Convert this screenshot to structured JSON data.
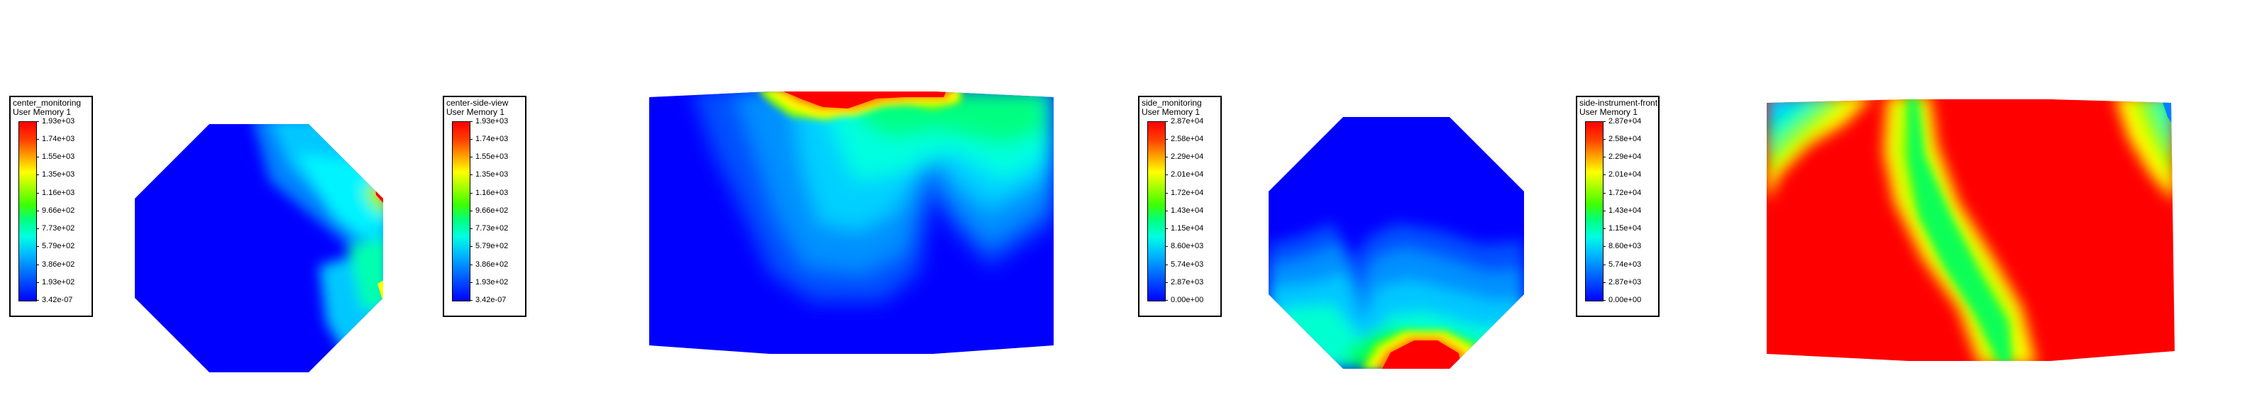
{
  "panels": [
    {
      "legend_title": "center_monitoring",
      "legend_subtitle": "User Memory 1",
      "ticks": [
        "1.93e+03",
        "1.74e+03",
        "1.55e+03",
        "1.35e+03",
        "1.16e+03",
        "9.66e+02",
        "7.73e+02",
        "5.79e+02",
        "3.86e+02",
        "1.93e+02",
        "3.42e-07"
      ]
    },
    {
      "legend_title": "center-side-view",
      "legend_subtitle": "User Memory 1",
      "ticks": [
        "1.93e+03",
        "1.74e+03",
        "1.55e+03",
        "1.35e+03",
        "1.16e+03",
        "9.66e+02",
        "7.73e+02",
        "5.79e+02",
        "3.86e+02",
        "1.93e+02",
        "3.42e-07"
      ]
    },
    {
      "legend_title": "side_monitoring",
      "legend_subtitle": "User Memory 1",
      "ticks": [
        "2.87e+04",
        "2.58e+04",
        "2.29e+04",
        "2.01e+04",
        "1.72e+04",
        "1.43e+04",
        "1.15e+04",
        "8.60e+03",
        "5.74e+03",
        "2.87e+03",
        "0.00e+00"
      ]
    },
    {
      "legend_title": "side-instrument-front",
      "legend_subtitle": "User Memory 1",
      "ticks": [
        "2.87e+04",
        "2.58e+04",
        "2.29e+04",
        "2.01e+04",
        "1.72e+04",
        "1.43e+04",
        "1.15e+04",
        "8.60e+03",
        "5.74e+03",
        "2.87e+03",
        "0.00e+00"
      ]
    }
  ],
  "colormap": [
    "#0000ff",
    "#0080ff",
    "#00ffff",
    "#00ff80",
    "#80ff00",
    "#ffff00",
    "#ff8000",
    "#ff0000"
  ]
}
